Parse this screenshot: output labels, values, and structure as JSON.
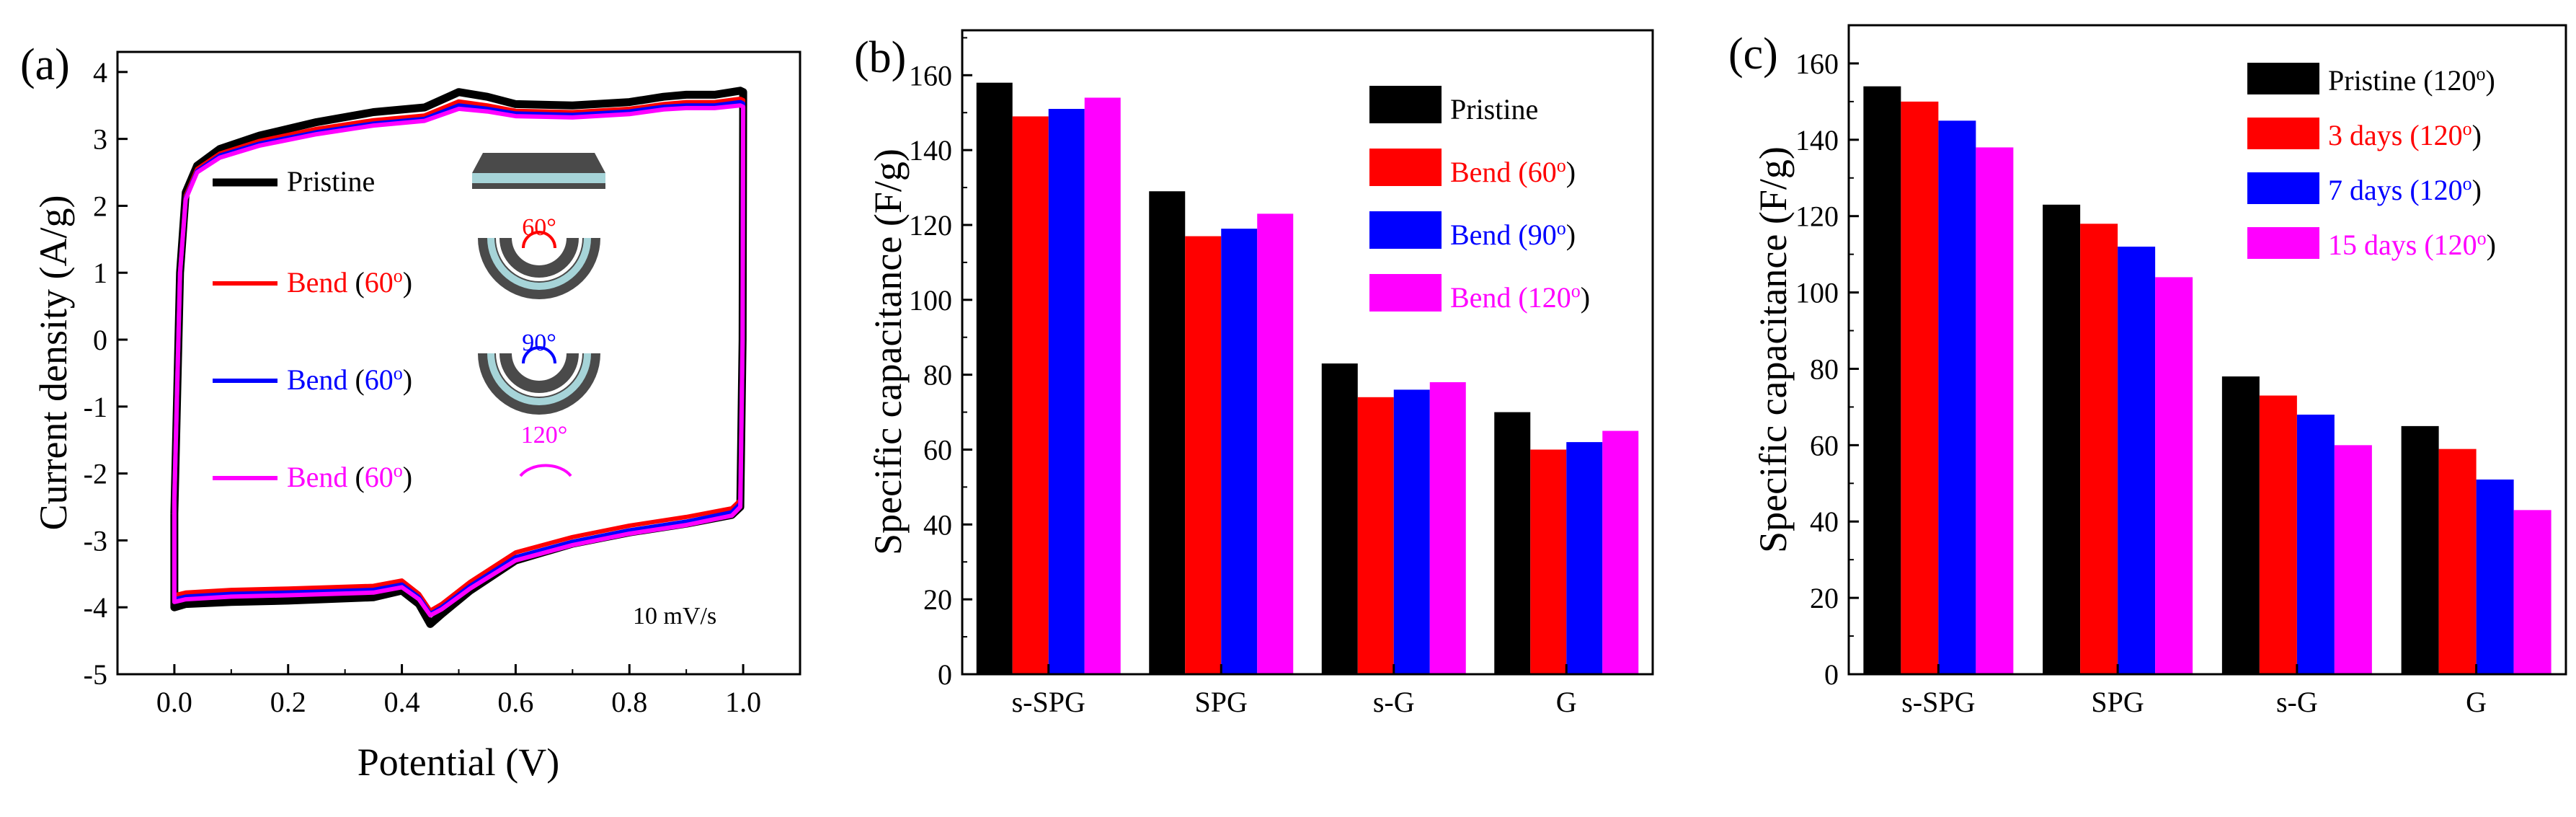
{
  "panel_labels": [
    "(a)",
    "(b)",
    "(c)"
  ],
  "colors": {
    "black": "#000000",
    "red": "#ff0000",
    "blue": "#0000ff",
    "magenta": "#ff00ff",
    "insetDark": "#4a4a4a",
    "insetLight": "#a6d4d8"
  },
  "chart_data": [
    {
      "type": "line",
      "title": "",
      "xlabel": "Potential (V)",
      "ylabel": "Current density (A/g)",
      "xlim": [
        -0.1,
        1.1
      ],
      "ylim": [
        -5,
        4.3
      ],
      "xticks": [
        "0.0",
        "0.2",
        "0.4",
        "0.6",
        "0.8",
        "1.0"
      ],
      "xtick_values": [
        0,
        0.2,
        0.4,
        0.6,
        0.8,
        1.0
      ],
      "yticks": [
        "-5",
        "-4",
        "-3",
        "-2",
        "-1",
        "0",
        "1",
        "2",
        "3",
        "4"
      ],
      "ytick_values": [
        -5,
        -4,
        -3,
        -2,
        -1,
        0,
        1,
        2,
        3,
        4
      ],
      "annotation": "10 mV/s",
      "inset_angles": [
        "60°",
        "90°",
        "120°"
      ],
      "series": [
        {
          "name": "Pristine",
          "legend_parts": [
            {
              "text": "Pristine",
              "color": "black"
            }
          ],
          "color": "black",
          "upper": [
            [
              0.0,
              -2.6
            ],
            [
              0.01,
              1.0
            ],
            [
              0.02,
              2.2
            ],
            [
              0.04,
              2.6
            ],
            [
              0.08,
              2.85
            ],
            [
              0.15,
              3.05
            ],
            [
              0.25,
              3.25
            ],
            [
              0.35,
              3.4
            ],
            [
              0.44,
              3.47
            ],
            [
              0.5,
              3.7
            ],
            [
              0.55,
              3.63
            ],
            [
              0.6,
              3.52
            ],
            [
              0.7,
              3.5
            ],
            [
              0.8,
              3.55
            ],
            [
              0.86,
              3.63
            ],
            [
              0.9,
              3.66
            ],
            [
              0.95,
              3.66
            ],
            [
              0.995,
              3.72
            ],
            [
              1.0,
              3.7
            ]
          ],
          "lower": [
            [
              1.0,
              3.7
            ],
            [
              0.999,
              0.0
            ],
            [
              0.995,
              -2.5
            ],
            [
              0.98,
              -2.62
            ],
            [
              0.9,
              -2.75
            ],
            [
              0.8,
              -2.88
            ],
            [
              0.7,
              -3.05
            ],
            [
              0.6,
              -3.3
            ],
            [
              0.52,
              -3.75
            ],
            [
              0.47,
              -4.1
            ],
            [
              0.45,
              -4.25
            ],
            [
              0.43,
              -3.95
            ],
            [
              0.4,
              -3.75
            ],
            [
              0.35,
              -3.85
            ],
            [
              0.2,
              -3.9
            ],
            [
              0.1,
              -3.92
            ],
            [
              0.02,
              -3.95
            ],
            [
              0.0,
              -4.0
            ],
            [
              0.0,
              -2.6
            ]
          ]
        },
        {
          "name": "Bend (60°)",
          "legend_parts": [
            {
              "text": "Bend (",
              "color": "red"
            },
            {
              "text": "60",
              "color": "red"
            },
            {
              "text": "o",
              "color": "red",
              "sup": true
            },
            {
              "text": ")",
              "color": "red"
            }
          ],
          "color": "red",
          "upper": [
            [
              0.0,
              -2.4
            ],
            [
              0.01,
              1.0
            ],
            [
              0.02,
              2.15
            ],
            [
              0.04,
              2.55
            ],
            [
              0.08,
              2.78
            ],
            [
              0.15,
              2.97
            ],
            [
              0.25,
              3.15
            ],
            [
              0.35,
              3.28
            ],
            [
              0.44,
              3.35
            ],
            [
              0.5,
              3.56
            ],
            [
              0.55,
              3.5
            ],
            [
              0.6,
              3.42
            ],
            [
              0.7,
              3.4
            ],
            [
              0.8,
              3.45
            ],
            [
              0.86,
              3.52
            ],
            [
              0.9,
              3.55
            ],
            [
              0.95,
              3.55
            ],
            [
              0.995,
              3.6
            ],
            [
              1.0,
              3.58
            ]
          ],
          "lower": [
            [
              1.0,
              3.58
            ],
            [
              0.999,
              0.0
            ],
            [
              0.995,
              -2.4
            ],
            [
              0.98,
              -2.52
            ],
            [
              0.9,
              -2.65
            ],
            [
              0.8,
              -2.78
            ],
            [
              0.7,
              -2.95
            ],
            [
              0.6,
              -3.18
            ],
            [
              0.52,
              -3.62
            ],
            [
              0.47,
              -3.95
            ],
            [
              0.45,
              -4.05
            ],
            [
              0.43,
              -3.8
            ],
            [
              0.4,
              -3.6
            ],
            [
              0.35,
              -3.68
            ],
            [
              0.2,
              -3.72
            ],
            [
              0.1,
              -3.74
            ],
            [
              0.02,
              -3.78
            ],
            [
              0.0,
              -3.82
            ],
            [
              0.0,
              -2.4
            ]
          ]
        },
        {
          "name": "Bend (60°)",
          "legend_parts": [
            {
              "text": "Bend (",
              "color": "blue"
            },
            {
              "text": "60",
              "color": "blue"
            },
            {
              "text": "o",
              "color": "blue",
              "sup": true
            },
            {
              "text": ")",
              "color": "blue"
            }
          ],
          "color": "blue",
          "upper": [
            [
              0.0,
              -2.4
            ],
            [
              0.01,
              1.0
            ],
            [
              0.02,
              2.12
            ],
            [
              0.04,
              2.52
            ],
            [
              0.08,
              2.75
            ],
            [
              0.15,
              2.93
            ],
            [
              0.25,
              3.1
            ],
            [
              0.35,
              3.23
            ],
            [
              0.44,
              3.3
            ],
            [
              0.5,
              3.5
            ],
            [
              0.55,
              3.45
            ],
            [
              0.6,
              3.38
            ],
            [
              0.7,
              3.36
            ],
            [
              0.8,
              3.41
            ],
            [
              0.86,
              3.48
            ],
            [
              0.9,
              3.5
            ],
            [
              0.95,
              3.5
            ],
            [
              0.995,
              3.55
            ],
            [
              1.0,
              3.53
            ]
          ],
          "lower": [
            [
              1.0,
              3.53
            ],
            [
              0.999,
              0.0
            ],
            [
              0.995,
              -2.45
            ],
            [
              0.98,
              -2.58
            ],
            [
              0.9,
              -2.72
            ],
            [
              0.8,
              -2.85
            ],
            [
              0.7,
              -3.02
            ],
            [
              0.6,
              -3.25
            ],
            [
              0.52,
              -3.68
            ],
            [
              0.47,
              -4.0
            ],
            [
              0.45,
              -4.1
            ],
            [
              0.43,
              -3.85
            ],
            [
              0.4,
              -3.66
            ],
            [
              0.35,
              -3.74
            ],
            [
              0.2,
              -3.78
            ],
            [
              0.1,
              -3.8
            ],
            [
              0.02,
              -3.84
            ],
            [
              0.0,
              -3.88
            ],
            [
              0.0,
              -2.4
            ]
          ]
        },
        {
          "name": "Bend (60°)",
          "legend_parts": [
            {
              "text": "Bend (",
              "color": "magenta"
            },
            {
              "text": "60",
              "color": "magenta"
            },
            {
              "text": "o",
              "color": "magenta",
              "sup": true
            },
            {
              "text": ")",
              "color": "magenta"
            }
          ],
          "color": "magenta",
          "upper": [
            [
              0.0,
              -2.4
            ],
            [
              0.01,
              1.0
            ],
            [
              0.02,
              2.1
            ],
            [
              0.04,
              2.5
            ],
            [
              0.08,
              2.72
            ],
            [
              0.15,
              2.9
            ],
            [
              0.25,
              3.07
            ],
            [
              0.35,
              3.2
            ],
            [
              0.44,
              3.27
            ],
            [
              0.5,
              3.45
            ],
            [
              0.55,
              3.41
            ],
            [
              0.6,
              3.34
            ],
            [
              0.7,
              3.32
            ],
            [
              0.8,
              3.37
            ],
            [
              0.86,
              3.44
            ],
            [
              0.9,
              3.46
            ],
            [
              0.95,
              3.46
            ],
            [
              0.995,
              3.5
            ],
            [
              1.0,
              3.48
            ]
          ],
          "lower": [
            [
              1.0,
              3.48
            ],
            [
              0.999,
              0.0
            ],
            [
              0.995,
              -2.5
            ],
            [
              0.98,
              -2.63
            ],
            [
              0.9,
              -2.77
            ],
            [
              0.8,
              -2.9
            ],
            [
              0.7,
              -3.07
            ],
            [
              0.6,
              -3.3
            ],
            [
              0.52,
              -3.72
            ],
            [
              0.47,
              -4.03
            ],
            [
              0.45,
              -4.12
            ],
            [
              0.43,
              -3.88
            ],
            [
              0.4,
              -3.7
            ],
            [
              0.35,
              -3.78
            ],
            [
              0.2,
              -3.82
            ],
            [
              0.1,
              -3.84
            ],
            [
              0.02,
              -3.88
            ],
            [
              0.0,
              -3.92
            ],
            [
              0.0,
              -2.4
            ]
          ]
        }
      ]
    },
    {
      "type": "bar",
      "title": "",
      "xlabel": "",
      "ylabel": "Specific capacitance (F/g)",
      "ylim": [
        0,
        172
      ],
      "yticks": [
        "0",
        "20",
        "40",
        "60",
        "80",
        "100",
        "120",
        "140",
        "160"
      ],
      "ytick_values": [
        0,
        20,
        40,
        60,
        80,
        100,
        120,
        140,
        160
      ],
      "categories": [
        "s-SPG",
        "SPG",
        "s-G",
        "G"
      ],
      "series": [
        {
          "name": "Pristine",
          "legend_parts": [
            {
              "text": "Pristine",
              "color": "black"
            }
          ],
          "color": "black",
          "values": [
            158,
            129,
            83,
            70
          ]
        },
        {
          "name": "Bend (60°)",
          "legend_parts": [
            {
              "text": "Bend (",
              "color": "red"
            },
            {
              "text": "60",
              "color": "red"
            },
            {
              "text": "o",
              "color": "red",
              "sup": true
            },
            {
              "text": ")",
              "color": "black"
            }
          ],
          "color": "red",
          "values": [
            149,
            117,
            74,
            60
          ]
        },
        {
          "name": "Bend (90°)",
          "legend_parts": [
            {
              "text": "Bend (",
              "color": "blue"
            },
            {
              "text": "90",
              "color": "blue"
            },
            {
              "text": "o",
              "color": "blue",
              "sup": true
            },
            {
              "text": ")",
              "color": "black"
            }
          ],
          "color": "blue",
          "values": [
            151,
            119,
            76,
            62
          ]
        },
        {
          "name": "Bend (120°)",
          "legend_parts": [
            {
              "text": "Bend (",
              "color": "magenta"
            },
            {
              "text": "120",
              "color": "magenta"
            },
            {
              "text": "o",
              "color": "magenta",
              "sup": true
            },
            {
              "text": ")",
              "color": "black"
            }
          ],
          "color": "magenta",
          "values": [
            154,
            123,
            78,
            65
          ]
        }
      ]
    },
    {
      "type": "bar",
      "title": "",
      "xlabel": "",
      "ylabel": "Specific capacitance (F/g)",
      "ylim": [
        0,
        170
      ],
      "yticks": [
        "0",
        "20",
        "40",
        "60",
        "80",
        "100",
        "120",
        "140",
        "160"
      ],
      "ytick_values": [
        0,
        20,
        40,
        60,
        80,
        100,
        120,
        140,
        160
      ],
      "categories": [
        "s-SPG",
        "SPG",
        "s-G",
        "G"
      ],
      "series": [
        {
          "name": "Pristine (120°)",
          "legend_parts": [
            {
              "text": "Pristine (",
              "color": "black"
            },
            {
              "text": "120",
              "color": "black"
            },
            {
              "text": "o",
              "color": "black",
              "sup": true
            },
            {
              "text": ")",
              "color": "black"
            }
          ],
          "color": "black",
          "values": [
            154,
            123,
            78,
            65
          ]
        },
        {
          "name": "3 days (120°)",
          "legend_parts": [
            {
              "text": "3 days (",
              "color": "red"
            },
            {
              "text": "120",
              "color": "red"
            },
            {
              "text": "o",
              "color": "red",
              "sup": true
            },
            {
              "text": ")",
              "color": "black"
            }
          ],
          "color": "red",
          "values": [
            150,
            118,
            73,
            59
          ]
        },
        {
          "name": "7 days (120°)",
          "legend_parts": [
            {
              "text": "7 days (",
              "color": "blue"
            },
            {
              "text": "120",
              "color": "blue"
            },
            {
              "text": "o",
              "color": "blue",
              "sup": true
            },
            {
              "text": ")",
              "color": "black"
            }
          ],
          "color": "blue",
          "values": [
            145,
            112,
            68,
            51
          ]
        },
        {
          "name": "15 days (120°)",
          "legend_parts": [
            {
              "text": "15 days (",
              "color": "magenta"
            },
            {
              "text": "120",
              "color": "magenta"
            },
            {
              "text": "o",
              "color": "magenta",
              "sup": true
            },
            {
              "text": ")",
              "color": "black"
            }
          ],
          "color": "magenta",
          "values": [
            138,
            104,
            60,
            43
          ]
        }
      ]
    }
  ]
}
